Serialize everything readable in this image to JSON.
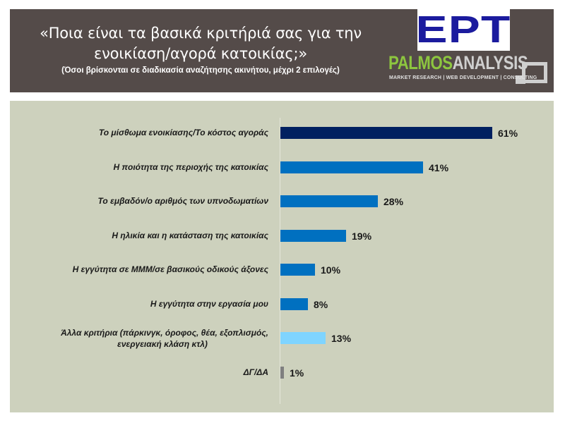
{
  "header": {
    "title_line1": "«Ποια είναι τα βασικά κριτήριά σας για την",
    "title_line2": "ενοικίαση/αγορά κατοικίας;»",
    "subtitle": "(Όσοι βρίσκονται σε διαδικασία αναζήτησης ακινήτου, μέχρι 2 επιλογές)"
  },
  "logos": {
    "ert": "ΕΡΤ",
    "palmos_part1": "PALMOS",
    "palmos_part2": "ANALYSIS",
    "palmos_tagline": "MARKET RESEARCH | WEB DEVELOPMENT | CONSULTING"
  },
  "chart_data": {
    "type": "bar",
    "orientation": "horizontal",
    "title": "«Ποια είναι τα βασικά κριτήριά σας για την ενοικίαση/αγορά κατοικίας;»",
    "subtitle": "(Όσοι βρίσκονται σε διαδικασία αναζήτησης ακινήτου, μέχρι 2 επιλογές)",
    "xlabel": "",
    "ylabel": "",
    "unit": "%",
    "grid": false,
    "legend": null,
    "categories": [
      "Το μίσθωμα ενοικίασης/Το κόστος αγοράς",
      "Η ποιότητα της περιοχής της κατοικίας",
      "Το εμβαδόν/ο αριθμός των υπνοδωματίων",
      "Η ηλικία και η κατάσταση της κατοικίας",
      "Η εγγύτητα σε ΜΜΜ/σε βασικούς οδικούς άξονες",
      "Η εγγύτητα στην εργασία μου",
      "Άλλα κριτήρια (πάρκινγκ, όροφος, θέα, εξοπλισμός, ενεργειακή κλάση κτλ)",
      "ΔΓ/ΔΑ"
    ],
    "values": [
      61,
      41,
      28,
      19,
      10,
      8,
      13,
      1
    ],
    "value_labels": [
      "61%",
      "41%",
      "28%",
      "19%",
      "10%",
      "8%",
      "13%",
      "1%"
    ],
    "colors": [
      "#002060",
      "#0070c0",
      "#0070c0",
      "#0070c0",
      "#0070c0",
      "#0070c0",
      "#7fd4ff",
      "#7f7f7f"
    ]
  },
  "rows": [
    {
      "label": "Το μίσθωμα ενοικίασης/Το κόστος αγοράς",
      "value": "61%"
    },
    {
      "label": "Η ποιότητα της περιοχής της κατοικίας",
      "value": "41%"
    },
    {
      "label": "Το εμβαδόν/ο αριθμός των υπνοδωματίων",
      "value": "28%"
    },
    {
      "label": "Η ηλικία και η κατάσταση της κατοικίας",
      "value": "19%"
    },
    {
      "label": "Η εγγύτητα σε ΜΜΜ/σε βασικούς οδικούς άξονες",
      "value": "10%"
    },
    {
      "label": "Η εγγύτητα στην εργασία μου",
      "value": "8%"
    },
    {
      "label": "Άλλα κριτήρια (πάρκινγκ, όροφος, θέα, εξοπλισμός, ενεργειακή κλάση κτλ)",
      "value": "13%"
    },
    {
      "label": "ΔΓ/ΔΑ",
      "value": "1%"
    }
  ]
}
